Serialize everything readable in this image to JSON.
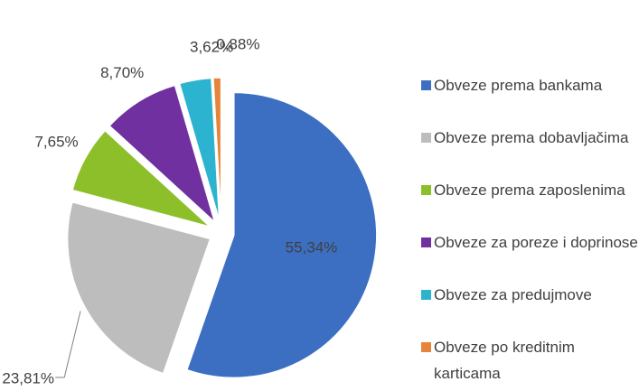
{
  "chart_data": {
    "type": "pie",
    "categories": [
      "Obveze prema bankama",
      "Obveze prema dobavljačima",
      "Obveze prema zaposlenima",
      "Obveze za poreze i doprinose",
      "Obveze za predujmove",
      "Obveze po kreditnim karticama"
    ],
    "values": [
      55.34,
      23.81,
      7.65,
      8.7,
      3.62,
      0.88
    ],
    "value_labels": [
      "55,34%",
      "23,81%",
      "7,65%",
      "8,70%",
      "3,62%",
      "0,88%"
    ],
    "colors": [
      "#3c6fc2",
      "#bdbdbd",
      "#8cbf2a",
      "#7030a0",
      "#2bb3cf",
      "#e6843a"
    ],
    "legend": "right"
  }
}
